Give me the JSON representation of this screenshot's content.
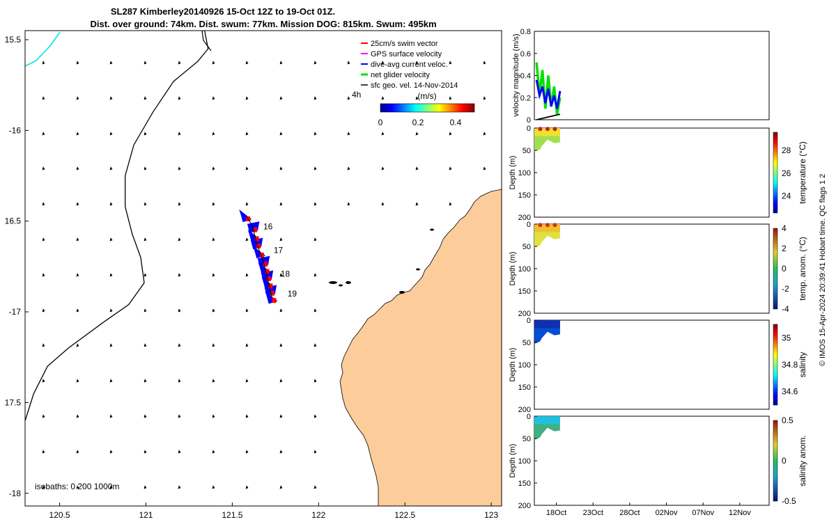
{
  "title": {
    "line1": "SL287 Kimberley20140926 15-Oct 12Z to 19-Oct 01Z.",
    "line2": "Dist. over ground: 74km. Dist. swum: 77km. Mission DOG: 815km. Swum: 495km"
  },
  "colors": {
    "land": "#fccc9a",
    "swim_vector": "#ff0000",
    "gps_surface": "#ff00ff",
    "dive_avg": "#0000ff",
    "net_glider": "#00e000",
    "sfc_geo": "#000000",
    "coastline_track": "#00e5e5"
  },
  "chart_data": [
    {
      "type": "map",
      "x_axis": {
        "range": [
          120.3,
          123.06
        ],
        "ticks": [
          120.5,
          121,
          121.5,
          122,
          122.5,
          123
        ],
        "tick_labels": [
          "120.5",
          "121",
          "121.5",
          "122",
          "122.5",
          "123"
        ]
      },
      "y_axis": {
        "range": [
          -18.07,
          -15.45
        ],
        "ticks": [
          -15.5,
          -16,
          -16.5,
          -17,
          -17.5,
          -18
        ],
        "tick_labels": [
          "15.5",
          "-16",
          "16.5",
          "-17",
          "17.5",
          "-18"
        ]
      },
      "legend": [
        {
          "label": "25cm/s swim vector",
          "color": "#ff0000"
        },
        {
          "label": "GPS surface velocity",
          "color": "#ff00ff"
        },
        {
          "label": "dive-avg current veloc.",
          "color": "#0000ff"
        },
        {
          "label": "net glider velocity",
          "color": "#00e000"
        },
        {
          "label": "sfc geo. vel. 14-Nov-2014",
          "color": "#000000"
        }
      ],
      "legend_extra": "4h",
      "colorbar": {
        "label": "(m/s)",
        "range": [
          0,
          0.5
        ],
        "ticks": [
          0,
          0.2,
          0.4
        ],
        "tick_labels": [
          "0",
          "0.2",
          "0.4"
        ]
      },
      "isobaths_label": "isobaths: 0   200  1000m",
      "day_labels": [
        {
          "text": "16",
          "lon": 121.68,
          "lat": -16.53
        },
        {
          "text": "17",
          "lon": 121.74,
          "lat": -16.66
        },
        {
          "text": "18",
          "lon": 121.78,
          "lat": -16.79
        },
        {
          "text": "19",
          "lon": 121.82,
          "lat": -16.9
        }
      ],
      "glider_track": [
        [
          121.58,
          -16.47
        ],
        [
          121.62,
          -16.53
        ],
        [
          121.63,
          -16.58
        ],
        [
          121.64,
          -16.62
        ],
        [
          121.66,
          -16.67
        ],
        [
          121.68,
          -16.72
        ],
        [
          121.69,
          -16.76
        ],
        [
          121.7,
          -16.8
        ],
        [
          121.71,
          -16.84
        ],
        [
          121.72,
          -16.88
        ],
        [
          121.73,
          -16.92
        ]
      ],
      "isobath_200m": [
        [
          120.3,
          -17.6
        ],
        [
          120.35,
          -17.45
        ],
        [
          120.43,
          -17.3
        ],
        [
          120.55,
          -17.2
        ],
        [
          120.75,
          -17.06
        ],
        [
          120.9,
          -16.96
        ],
        [
          120.99,
          -16.84
        ],
        [
          120.97,
          -16.7
        ],
        [
          120.92,
          -16.57
        ],
        [
          120.88,
          -16.42
        ],
        [
          120.88,
          -16.25
        ],
        [
          120.93,
          -16.08
        ],
        [
          121.04,
          -15.9
        ],
        [
          121.16,
          -15.73
        ],
        [
          121.3,
          -15.62
        ],
        [
          121.36,
          -15.55
        ],
        [
          121.34,
          -15.45
        ]
      ]
    },
    {
      "type": "line",
      "ylabel": "velocity magnitude (m/s)",
      "ylim": [
        0,
        0.8
      ],
      "yticks": [
        0,
        0.2,
        0.4,
        0.6,
        0.8
      ],
      "xlim_days": [
        0,
        32
      ],
      "series": [
        {
          "name": "net glider velocity",
          "color": "#00e000",
          "x": [
            0.3,
            0.7,
            1.1,
            1.5,
            1.9,
            2.3,
            2.7,
            3.1,
            3.5
          ],
          "y": [
            0.52,
            0.22,
            0.45,
            0.1,
            0.4,
            0.12,
            0.3,
            0.05,
            0.2
          ]
        },
        {
          "name": "dive-avg current veloc.",
          "color": "#0000ff",
          "x": [
            0.3,
            0.7,
            1.1,
            1.5,
            1.9,
            2.3,
            2.7,
            3.1,
            3.5
          ],
          "y": [
            0.36,
            0.22,
            0.3,
            0.15,
            0.28,
            0.12,
            0.22,
            0.1,
            0.26
          ]
        },
        {
          "name": "swim",
          "color": "#000000",
          "x": [
            0.3,
            3.5
          ],
          "y": [
            0.0,
            0.05
          ]
        }
      ]
    },
    {
      "type": "heatmap",
      "ylabel": "Depth (m)",
      "yticks": [
        "0",
        "50",
        "100",
        "150",
        "200"
      ],
      "colorbar_label": "temperature (°C)",
      "colorbar_ticks": [
        "24",
        "26",
        "28"
      ],
      "crange": [
        22.5,
        29.6
      ]
    },
    {
      "type": "heatmap",
      "ylabel": "Depth (m)",
      "yticks": [
        "0",
        "50",
        "100",
        "150",
        "200"
      ],
      "colorbar_label": "temp. anom. (°C)",
      "colorbar_ticks": [
        "-4",
        "-2",
        "0",
        "2",
        "4"
      ],
      "crange": [
        -4,
        4
      ]
    },
    {
      "type": "heatmap",
      "ylabel": "Depth (m)",
      "yticks": [
        "0",
        "50",
        "100",
        "150",
        "200"
      ],
      "colorbar_label": "salinity",
      "colorbar_ticks": [
        "34.6",
        "34.8",
        "35"
      ],
      "crange": [
        34.5,
        35.1
      ]
    },
    {
      "type": "heatmap",
      "ylabel": "Depth (m)",
      "yticks": [
        "0",
        "50",
        "100",
        "150",
        "200"
      ],
      "colorbar_label": "salinity anom.",
      "colorbar_ticks": [
        "-0.5",
        "0",
        "0.5"
      ],
      "crange": [
        -0.5,
        0.5
      ],
      "xticks": [
        "18Oct",
        "23Oct",
        "28Oct",
        "02Nov",
        "07Nov",
        "12Nov"
      ]
    }
  ],
  "footer": "© IMOS 15-Apr-2024 20:39:41 Hobart time. QC flags 1  2"
}
